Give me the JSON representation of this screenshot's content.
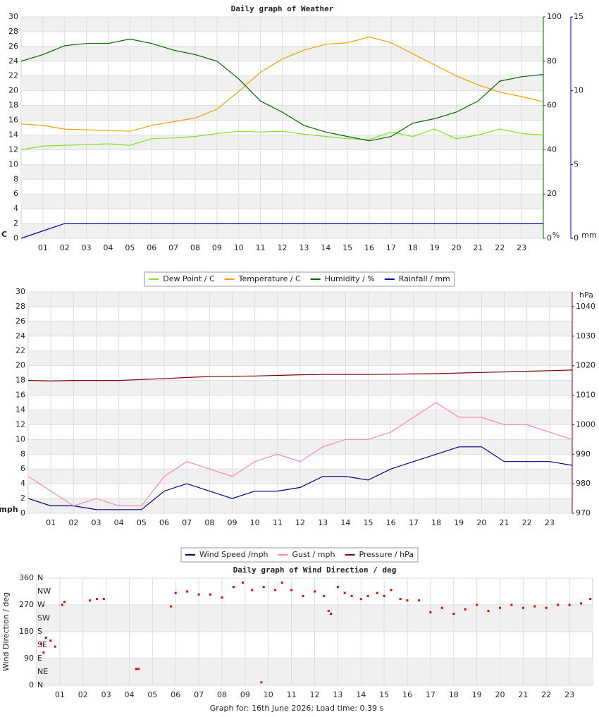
{
  "chart_data": [
    {
      "type": "line",
      "title": "Daily graph of Weather",
      "x": [
        0,
        1,
        2,
        3,
        4,
        5,
        6,
        7,
        8,
        9,
        10,
        11,
        12,
        13,
        14,
        15,
        16,
        17,
        18,
        19,
        20,
        21,
        22,
        23,
        24
      ],
      "xlim": [
        0,
        24
      ],
      "xticks": [
        {
          "value": 1,
          "label": "01"
        },
        {
          "value": 2,
          "label": "02"
        },
        {
          "value": 3,
          "label": "03"
        },
        {
          "value": 4,
          "label": "04"
        },
        {
          "value": 5,
          "label": "05"
        },
        {
          "value": 6,
          "label": "06"
        },
        {
          "value": 7,
          "label": "07"
        },
        {
          "value": 8,
          "label": "08"
        },
        {
          "value": 9,
          "label": "09"
        },
        {
          "value": 10,
          "label": "10"
        },
        {
          "value": 11,
          "label": "11"
        },
        {
          "value": 12,
          "label": "12"
        },
        {
          "value": 13,
          "label": "13"
        },
        {
          "value": 14,
          "label": "14"
        },
        {
          "value": 15,
          "label": "15"
        },
        {
          "value": 16,
          "label": "16"
        },
        {
          "value": 17,
          "label": "17"
        },
        {
          "value": 18,
          "label": "18"
        },
        {
          "value": 19,
          "label": "19"
        },
        {
          "value": 20,
          "label": "20"
        },
        {
          "value": 21,
          "label": "21"
        },
        {
          "value": 22,
          "label": "22"
        },
        {
          "value": 23,
          "label": "23"
        }
      ],
      "ylim": [
        0,
        30
      ],
      "yticks": [
        0,
        2,
        4,
        6,
        8,
        10,
        12,
        14,
        16,
        18,
        20,
        22,
        24,
        26,
        28,
        30
      ],
      "ylabel": "C",
      "ytick_color": "#e8a000",
      "y2lim": [
        0,
        100
      ],
      "y2ticks": [
        0,
        20,
        40,
        60,
        80,
        100
      ],
      "y2label": "%",
      "y2tick_color": "#006400",
      "y3lim": [
        0,
        15
      ],
      "y3ticks": [
        0,
        5,
        10,
        15
      ],
      "y3label": "mm",
      "y3tick_color": "#0000aa",
      "grid": true,
      "series": [
        {
          "name": "Dew Point / C",
          "color": "#80e020",
          "axis": "y",
          "values": [
            12,
            12.5,
            12.6,
            12.7,
            12.8,
            12.6,
            13.5,
            13.6,
            13.8,
            14.2,
            14.5,
            14.4,
            14.5,
            14.1,
            13.8,
            13.5,
            13.4,
            14.4,
            13.8,
            14.8,
            13.5,
            14,
            14.8,
            14.2,
            14
          ]
        },
        {
          "name": "Temperature / C",
          "color": "#f0a000",
          "axis": "y",
          "values": [
            15.5,
            15.3,
            14.8,
            14.7,
            14.6,
            14.5,
            15.3,
            15.8,
            16.3,
            17.5,
            19.9,
            22.5,
            24.3,
            25.5,
            26.3,
            26.5,
            27.3,
            26.5,
            25,
            23.5,
            22,
            20.8,
            19.8,
            19.2,
            18.5
          ]
        },
        {
          "name": "Humidity / %",
          "color": "#006400",
          "axis": "y2",
          "values": [
            80,
            83,
            87,
            88,
            88,
            90,
            88,
            85,
            83,
            80,
            72,
            62,
            57,
            51,
            48,
            46,
            44,
            46,
            52,
            54,
            57,
            62,
            71,
            73,
            74
          ]
        },
        {
          "name": "Rainfall / mm",
          "color": "#0000aa",
          "axis": "y3",
          "values": [
            0,
            0.5,
            1,
            1,
            1,
            1,
            1,
            1,
            1,
            1,
            1,
            1,
            1,
            1,
            1,
            1,
            1,
            1,
            1,
            1,
            1,
            1,
            1,
            1,
            1
          ]
        }
      ]
    },
    {
      "type": "line",
      "x": [
        0,
        1,
        2,
        3,
        4,
        5,
        6,
        7,
        8,
        9,
        10,
        11,
        12,
        13,
        14,
        15,
        16,
        17,
        18,
        19,
        20,
        21,
        22,
        23,
        24
      ],
      "xlim": [
        0,
        24
      ],
      "xticks": [
        {
          "value": 1,
          "label": "01"
        },
        {
          "value": 2,
          "label": "02"
        },
        {
          "value": 3,
          "label": "03"
        },
        {
          "value": 4,
          "label": "04"
        },
        {
          "value": 5,
          "label": "05"
        },
        {
          "value": 6,
          "label": "06"
        },
        {
          "value": 7,
          "label": "07"
        },
        {
          "value": 8,
          "label": "08"
        },
        {
          "value": 9,
          "label": "09"
        },
        {
          "value": 10,
          "label": "10"
        },
        {
          "value": 11,
          "label": "11"
        },
        {
          "value": 12,
          "label": "12"
        },
        {
          "value": 13,
          "label": "13"
        },
        {
          "value": 14,
          "label": "14"
        },
        {
          "value": 15,
          "label": "15"
        },
        {
          "value": 16,
          "label": "16"
        },
        {
          "value": 17,
          "label": "17"
        },
        {
          "value": 18,
          "label": "18"
        },
        {
          "value": 19,
          "label": "19"
        },
        {
          "value": 20,
          "label": "20"
        },
        {
          "value": 21,
          "label": "21"
        },
        {
          "value": 22,
          "label": "22"
        },
        {
          "value": 23,
          "label": "23"
        }
      ],
      "ylim": [
        0,
        30
      ],
      "yticks": [
        0,
        2,
        4,
        6,
        8,
        10,
        12,
        14,
        16,
        18,
        20,
        22,
        24,
        26,
        28,
        30
      ],
      "ylabel": "mph",
      "ytick_color": "#000080",
      "y2lim": [
        970,
        1045
      ],
      "y2ticks": [
        970,
        980,
        990,
        1000,
        1010,
        1020,
        1030,
        1040
      ],
      "y2label": "hPa",
      "y2tick_color": "#800000",
      "grid": true,
      "series": [
        {
          "name": "Wind Speed /mph",
          "color": "#000080",
          "axis": "y",
          "values": [
            2,
            1,
            1,
            0.5,
            0.5,
            0.5,
            3,
            4,
            3,
            2,
            3,
            3,
            3.5,
            5,
            5,
            4.5,
            6,
            7,
            8,
            9,
            9,
            7,
            7,
            7,
            6.5
          ]
        },
        {
          "name": "Gust / mph",
          "color": "#ff88aa",
          "axis": "y",
          "values": [
            5,
            3,
            1,
            2,
            1,
            1,
            5,
            7,
            6,
            5,
            7,
            8,
            7,
            9,
            10,
            10,
            11,
            13,
            15,
            13,
            13,
            12,
            12,
            11,
            10
          ]
        },
        {
          "name": "Pressure / hPa",
          "color": "#800000",
          "axis": "y2",
          "values": [
            1015,
            1014.8,
            1015,
            1015,
            1015,
            1015.3,
            1015.6,
            1016,
            1016.3,
            1016.4,
            1016.5,
            1016.7,
            1016.9,
            1017,
            1017,
            1017,
            1017.1,
            1017.2,
            1017.3,
            1017.5,
            1017.7,
            1017.9,
            1018.1,
            1018.3,
            1018.5
          ]
        }
      ]
    },
    {
      "type": "scatter",
      "title": "Daily graph of Wind Direction / deg",
      "ylabel": "Wind Direction / deg",
      "x": [
        0.2,
        0.3,
        0.4,
        0.6,
        0.8,
        1.1,
        1.2,
        2.3,
        2.6,
        2.9,
        4.3,
        4.4,
        5.8,
        6,
        6.5,
        7,
        7.5,
        8,
        8.5,
        8.9,
        9.3,
        9.7,
        9.8,
        10.3,
        10.6,
        11,
        11.5,
        12,
        12.4,
        12.6,
        12.7,
        13,
        13.3,
        13.6,
        14,
        14.3,
        14.7,
        15,
        15.3,
        15.7,
        16,
        16.5,
        17,
        17.5,
        18,
        18.5,
        19,
        19.5,
        20,
        20.5,
        21,
        21.5,
        22,
        22.5,
        23,
        23.5,
        23.9
      ],
      "values": [
        140,
        110,
        160,
        150,
        130,
        270,
        280,
        285,
        290,
        290,
        55,
        55,
        265,
        310,
        315,
        305,
        305,
        295,
        330,
        345,
        320,
        10,
        330,
        320,
        345,
        320,
        300,
        315,
        300,
        250,
        240,
        330,
        310,
        300,
        290,
        300,
        310,
        300,
        320,
        290,
        285,
        285,
        245,
        260,
        240,
        255,
        270,
        250,
        260,
        270,
        260,
        265,
        260,
        270,
        270,
        275,
        290
      ],
      "color": "#dd0000",
      "xlim": [
        0,
        24
      ],
      "xticks": [
        {
          "value": 1,
          "label": "01"
        },
        {
          "value": 2,
          "label": "02"
        },
        {
          "value": 3,
          "label": "03"
        },
        {
          "value": 4,
          "label": "04"
        },
        {
          "value": 5,
          "label": "05"
        },
        {
          "value": 6,
          "label": "06"
        },
        {
          "value": 7,
          "label": "07"
        },
        {
          "value": 8,
          "label": "08"
        },
        {
          "value": 9,
          "label": "09"
        },
        {
          "value": 10,
          "label": "10"
        },
        {
          "value": 11,
          "label": "11"
        },
        {
          "value": 12,
          "label": "12"
        },
        {
          "value": 13,
          "label": "13"
        },
        {
          "value": 14,
          "label": "14"
        },
        {
          "value": 15,
          "label": "15"
        },
        {
          "value": 16,
          "label": "16"
        },
        {
          "value": 17,
          "label": "17"
        },
        {
          "value": 18,
          "label": "18"
        },
        {
          "value": 19,
          "label": "19"
        },
        {
          "value": 20,
          "label": "20"
        },
        {
          "value": 21,
          "label": "21"
        },
        {
          "value": 22,
          "label": "22"
        },
        {
          "value": 23,
          "label": "23"
        }
      ],
      "ylim": [
        0,
        360
      ],
      "yticks": [
        0,
        90,
        180,
        270,
        360
      ],
      "ytick_color": "#cc0000",
      "y2lim": [
        0,
        360
      ],
      "y2ticks": [
        {
          "value": 0,
          "label": "N"
        },
        {
          "value": 45,
          "label": "NE"
        },
        {
          "value": 90,
          "label": "E"
        },
        {
          "value": 135,
          "label": "SE"
        },
        {
          "value": 180,
          "label": "S"
        },
        {
          "value": 225,
          "label": "SW"
        },
        {
          "value": 270,
          "label": "W"
        },
        {
          "value": 315,
          "label": "NW"
        },
        {
          "value": 360,
          "label": "N"
        }
      ],
      "y2tick_color": "#cc0000",
      "grid": true
    }
  ],
  "footer": "Graph for: 16th June 2026; Load time: 0.39 s"
}
